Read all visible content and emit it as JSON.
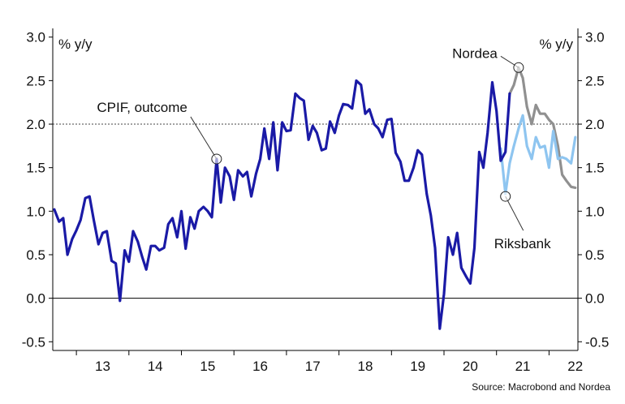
{
  "chart_data": {
    "type": "line",
    "y_unit_left": "% y/y",
    "y_unit_right": "% y/y",
    "ylim": [
      -0.6,
      3.1
    ],
    "xlim": [
      2012.55,
      2022.55
    ],
    "y_ticks": [
      "-0.5",
      "0.0",
      "0.5",
      "1.0",
      "1.5",
      "2.0",
      "2.5",
      "3.0"
    ],
    "x_ticks": [
      "13",
      "14",
      "15",
      "16",
      "17",
      "18",
      "19",
      "20",
      "21",
      "22"
    ],
    "reference_line": {
      "y": 2.0,
      "style": "dotted"
    },
    "zero_line": {
      "y": 0.0
    },
    "grid": false,
    "legend": "none",
    "series": [
      {
        "name": "CPIF, outcome",
        "color": "#1a1aa6",
        "points": [
          [
            2012.58,
            1.02
          ],
          [
            2012.67,
            0.88
          ],
          [
            2012.75,
            0.92
          ],
          [
            2012.83,
            0.5
          ],
          [
            2012.92,
            0.68
          ],
          [
            2013.0,
            0.78
          ],
          [
            2013.08,
            0.9
          ],
          [
            2013.17,
            1.15
          ],
          [
            2013.25,
            1.17
          ],
          [
            2013.33,
            0.9
          ],
          [
            2013.42,
            0.62
          ],
          [
            2013.5,
            0.75
          ],
          [
            2013.58,
            0.77
          ],
          [
            2013.67,
            0.43
          ],
          [
            2013.75,
            0.4
          ],
          [
            2013.83,
            -0.03
          ],
          [
            2013.92,
            0.55
          ],
          [
            2014.0,
            0.42
          ],
          [
            2014.08,
            0.77
          ],
          [
            2014.17,
            0.65
          ],
          [
            2014.25,
            0.48
          ],
          [
            2014.33,
            0.33
          ],
          [
            2014.42,
            0.6
          ],
          [
            2014.5,
            0.6
          ],
          [
            2014.58,
            0.55
          ],
          [
            2014.67,
            0.58
          ],
          [
            2014.75,
            0.85
          ],
          [
            2014.83,
            0.92
          ],
          [
            2014.92,
            0.7
          ],
          [
            2015.0,
            1.0
          ],
          [
            2015.08,
            0.57
          ],
          [
            2015.17,
            0.93
          ],
          [
            2015.25,
            0.8
          ],
          [
            2015.33,
            1.0
          ],
          [
            2015.42,
            1.05
          ],
          [
            2015.5,
            1.0
          ],
          [
            2015.58,
            0.93
          ],
          [
            2015.67,
            1.6
          ],
          [
            2015.75,
            1.1
          ],
          [
            2015.83,
            1.5
          ],
          [
            2015.92,
            1.4
          ],
          [
            2016.0,
            1.13
          ],
          [
            2016.08,
            1.47
          ],
          [
            2016.17,
            1.4
          ],
          [
            2016.25,
            1.45
          ],
          [
            2016.33,
            1.17
          ],
          [
            2016.42,
            1.43
          ],
          [
            2016.5,
            1.6
          ],
          [
            2016.58,
            1.95
          ],
          [
            2016.67,
            1.6
          ],
          [
            2016.75,
            2.02
          ],
          [
            2016.83,
            1.47
          ],
          [
            2016.92,
            2.02
          ],
          [
            2017.0,
            1.92
          ],
          [
            2017.08,
            1.93
          ],
          [
            2017.17,
            2.35
          ],
          [
            2017.25,
            2.3
          ],
          [
            2017.33,
            2.27
          ],
          [
            2017.42,
            1.82
          ],
          [
            2017.5,
            1.98
          ],
          [
            2017.58,
            1.9
          ],
          [
            2017.67,
            1.7
          ],
          [
            2017.75,
            1.72
          ],
          [
            2017.83,
            2.03
          ],
          [
            2017.92,
            1.9
          ],
          [
            2018.0,
            2.1
          ],
          [
            2018.08,
            2.23
          ],
          [
            2018.17,
            2.22
          ],
          [
            2018.25,
            2.18
          ],
          [
            2018.33,
            2.5
          ],
          [
            2018.42,
            2.45
          ],
          [
            2018.5,
            2.12
          ],
          [
            2018.58,
            2.17
          ],
          [
            2018.67,
            2.0
          ],
          [
            2018.75,
            1.95
          ],
          [
            2018.83,
            1.85
          ],
          [
            2018.92,
            2.05
          ],
          [
            2019.0,
            2.06
          ],
          [
            2019.08,
            1.67
          ],
          [
            2019.17,
            1.57
          ],
          [
            2019.25,
            1.35
          ],
          [
            2019.33,
            1.35
          ],
          [
            2019.42,
            1.5
          ],
          [
            2019.5,
            1.7
          ],
          [
            2019.58,
            1.65
          ],
          [
            2019.67,
            1.2
          ],
          [
            2019.75,
            0.95
          ],
          [
            2019.83,
            0.58
          ],
          [
            2019.92,
            -0.35
          ],
          [
            2020.0,
            0.05
          ],
          [
            2020.08,
            0.7
          ],
          [
            2020.17,
            0.5
          ],
          [
            2020.25,
            0.75
          ],
          [
            2020.33,
            0.35
          ],
          [
            2020.42,
            0.25
          ],
          [
            2020.5,
            0.17
          ],
          [
            2020.58,
            0.58
          ],
          [
            2020.67,
            1.68
          ],
          [
            2020.75,
            1.5
          ],
          [
            2020.83,
            1.9
          ],
          [
            2020.92,
            2.48
          ],
          [
            2021.0,
            2.15
          ],
          [
            2021.08,
            1.58
          ],
          [
            2021.17,
            1.68
          ],
          [
            2021.25,
            2.35
          ]
        ]
      },
      {
        "name": "Nordea",
        "color": "#909090",
        "points": [
          [
            2021.25,
            2.35
          ],
          [
            2021.33,
            2.45
          ],
          [
            2021.42,
            2.65
          ],
          [
            2021.5,
            2.53
          ],
          [
            2021.58,
            2.2
          ],
          [
            2021.67,
            2.0
          ],
          [
            2021.75,
            2.22
          ],
          [
            2021.83,
            2.12
          ],
          [
            2021.92,
            2.12
          ],
          [
            2022.0,
            2.05
          ],
          [
            2022.08,
            2.0
          ],
          [
            2022.17,
            1.75
          ],
          [
            2022.25,
            1.42
          ],
          [
            2022.33,
            1.35
          ],
          [
            2022.42,
            1.28
          ],
          [
            2022.5,
            1.27
          ]
        ]
      },
      {
        "name": "Riksbank",
        "color": "#8ec5f0",
        "points": [
          [
            2021.08,
            1.72
          ],
          [
            2021.17,
            1.2
          ],
          [
            2021.25,
            1.55
          ],
          [
            2021.33,
            1.75
          ],
          [
            2021.42,
            1.95
          ],
          [
            2021.5,
            2.1
          ],
          [
            2021.58,
            1.75
          ],
          [
            2021.67,
            1.6
          ],
          [
            2021.75,
            1.85
          ],
          [
            2021.83,
            1.73
          ],
          [
            2021.92,
            1.75
          ],
          [
            2022.0,
            1.5
          ],
          [
            2022.08,
            1.92
          ],
          [
            2022.17,
            1.6
          ],
          [
            2022.25,
            1.62
          ],
          [
            2022.33,
            1.6
          ],
          [
            2022.42,
            1.55
          ],
          [
            2022.5,
            1.85
          ]
        ]
      }
    ],
    "annotations": [
      {
        "text": "CPIF, outcome",
        "x": 2015.67,
        "y": 1.6
      },
      {
        "text": "Nordea",
        "x": 2021.42,
        "y": 2.65
      },
      {
        "text": "Riksbank",
        "x": 2021.17,
        "y": 1.17
      }
    ],
    "source": "Source: Macrobond and Nordea"
  }
}
